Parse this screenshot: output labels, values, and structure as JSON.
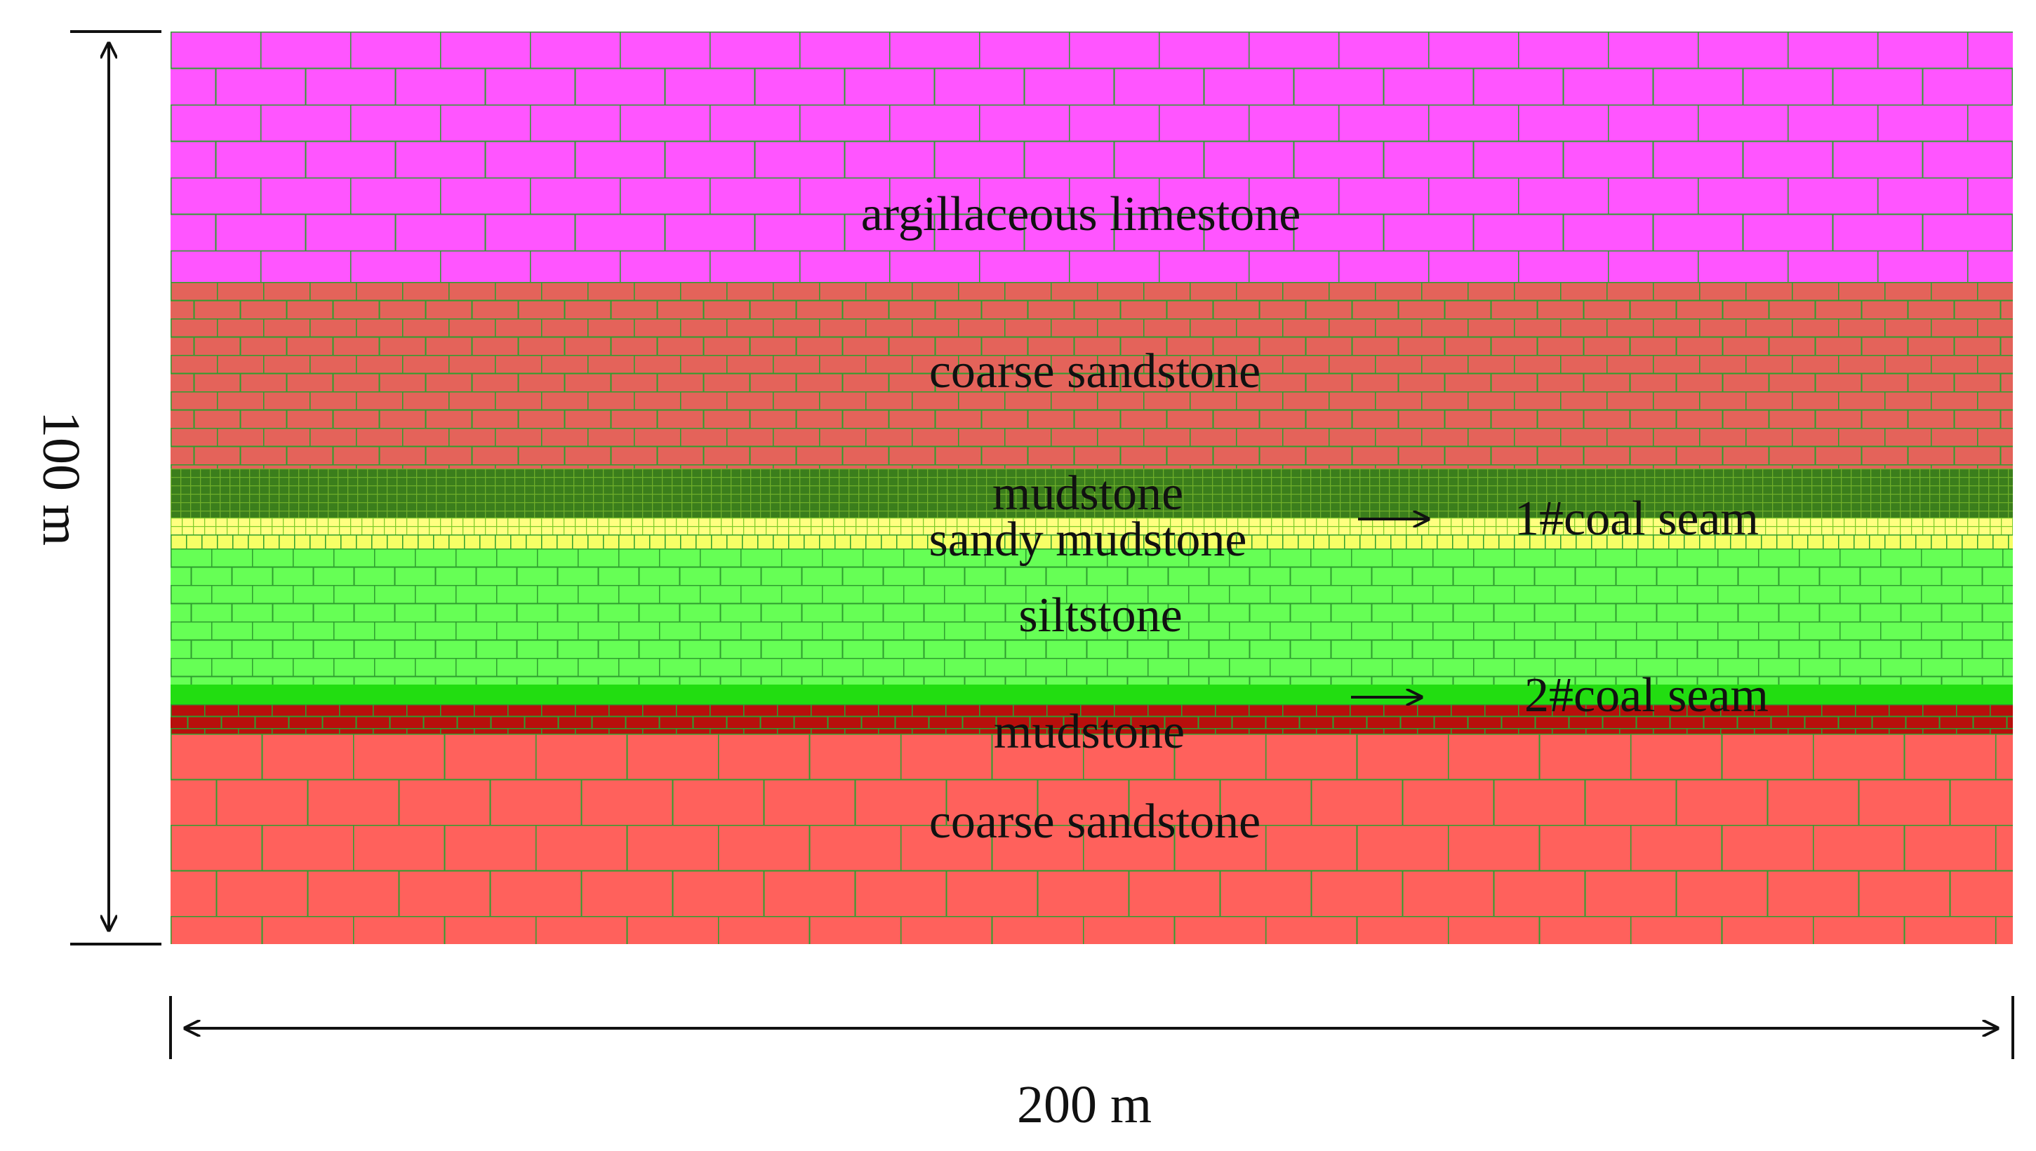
{
  "layers": [
    {
      "name": "argillaceous limestone",
      "color": "#ff55ff",
      "pattern": "brick-large"
    },
    {
      "name": "coarse sandstone",
      "color": "#e4635a",
      "pattern": "brick-small"
    },
    {
      "name": "mudstone",
      "color": "#3b7e1c",
      "pattern": "grid-fine"
    },
    {
      "name": "1#coal seam",
      "color": "#ffff80",
      "pattern": "grid-fine"
    },
    {
      "name": "sandy mudstone",
      "color": "#f6ff66",
      "pattern": "grid-fine"
    },
    {
      "name": "siltstone",
      "color": "#66ff55",
      "pattern": "brick-small"
    },
    {
      "name": "2#coal seam",
      "color": "#22dd11",
      "pattern": "solid"
    },
    {
      "name": "mudstone",
      "color": "#b80f0c",
      "pattern": "brick-thin"
    },
    {
      "name": "coarse sandstone",
      "color": "#ff615c",
      "pattern": "brick-large"
    }
  ],
  "labels": {
    "argillaceous_limestone": "argillaceous limestone",
    "coarse_sandstone_upper": "coarse sandstone",
    "mudstone_upper": "mudstone",
    "sandy_mudstone": "sandy mudstone",
    "siltstone": "siltstone",
    "mudstone_lower": "mudstone",
    "coarse_sandstone_lower": "coarse sandstone",
    "coal_seam_1": "1#coal seam",
    "coal_seam_2": "2#coal seam"
  },
  "dimensions": {
    "height_label": "100 m",
    "width_label": "200 m"
  },
  "colors": {
    "mortar": "#2f9e2f",
    "arrow": "#111111",
    "text": "#111111"
  }
}
